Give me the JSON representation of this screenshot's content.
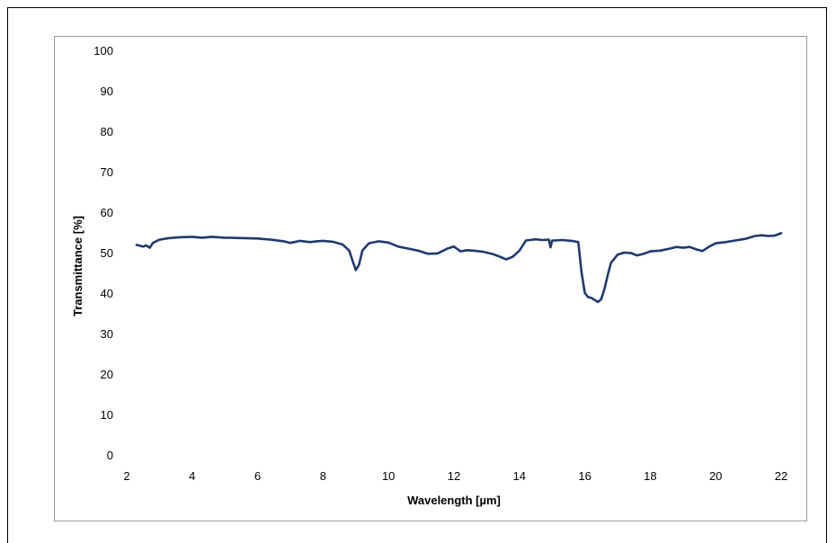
{
  "chart_data": {
    "type": "line",
    "xlabel": "Wavelength [µm]",
    "ylabel": "Transmittance [%]",
    "xlim": [
      2,
      22
    ],
    "ylim": [
      0,
      100
    ],
    "xticks": [
      2,
      4,
      6,
      8,
      10,
      12,
      14,
      16,
      18,
      20,
      22
    ],
    "yticks": [
      0,
      10,
      20,
      30,
      40,
      50,
      60,
      70,
      80,
      90,
      100
    ],
    "grid": false,
    "series": [
      {
        "color": "#1f3a6e",
        "x": [
          2.3,
          2.5,
          2.6,
          2.7,
          2.8,
          3.0,
          3.3,
          3.6,
          4.0,
          4.3,
          4.6,
          5.0,
          5.5,
          6.0,
          6.4,
          6.8,
          7.0,
          7.3,
          7.6,
          7.8,
          8.0,
          8.3,
          8.6,
          8.8,
          8.9,
          9.0,
          9.1,
          9.2,
          9.4,
          9.7,
          10.0,
          10.3,
          10.6,
          10.9,
          11.2,
          11.5,
          11.8,
          12.0,
          12.2,
          12.4,
          12.6,
          12.9,
          13.2,
          13.4,
          13.6,
          13.8,
          14.0,
          14.2,
          14.5,
          14.7,
          14.9,
          14.95,
          15.0,
          15.1,
          15.3,
          15.6,
          15.8,
          15.9,
          16.0,
          16.1,
          16.2,
          16.3,
          16.4,
          16.5,
          16.6,
          16.7,
          16.8,
          17.0,
          17.2,
          17.4,
          17.6,
          17.8,
          18.0,
          18.3,
          18.6,
          18.8,
          19.0,
          19.2,
          19.4,
          19.6,
          19.8,
          20.0,
          20.3,
          20.6,
          20.9,
          21.2,
          21.4,
          21.6,
          21.8,
          22.0
        ],
        "values": [
          51.9,
          51.5,
          51.8,
          51.2,
          52.4,
          53.2,
          53.6,
          53.8,
          53.9,
          53.7,
          53.9,
          53.7,
          53.6,
          53.5,
          53.2,
          52.8,
          52.4,
          52.9,
          52.6,
          52.8,
          52.9,
          52.7,
          52.0,
          50.5,
          48.0,
          45.7,
          47.0,
          50.5,
          52.3,
          52.8,
          52.5,
          51.5,
          51.0,
          50.5,
          49.7,
          49.8,
          51.0,
          51.5,
          50.3,
          50.6,
          50.5,
          50.2,
          49.6,
          49.0,
          48.3,
          49.0,
          50.5,
          53.0,
          53.3,
          53.1,
          53.2,
          51.3,
          53.0,
          53.0,
          53.1,
          52.9,
          52.6,
          45.0,
          40.0,
          39.0,
          38.8,
          38.3,
          37.8,
          38.5,
          41.0,
          44.5,
          47.5,
          49.5,
          50.0,
          49.9,
          49.3,
          49.7,
          50.3,
          50.5,
          51.0,
          51.4,
          51.2,
          51.4,
          50.8,
          50.4,
          51.5,
          52.3,
          52.6,
          53.0,
          53.4,
          54.1,
          54.3,
          54.1,
          54.2,
          54.8
        ]
      }
    ]
  }
}
